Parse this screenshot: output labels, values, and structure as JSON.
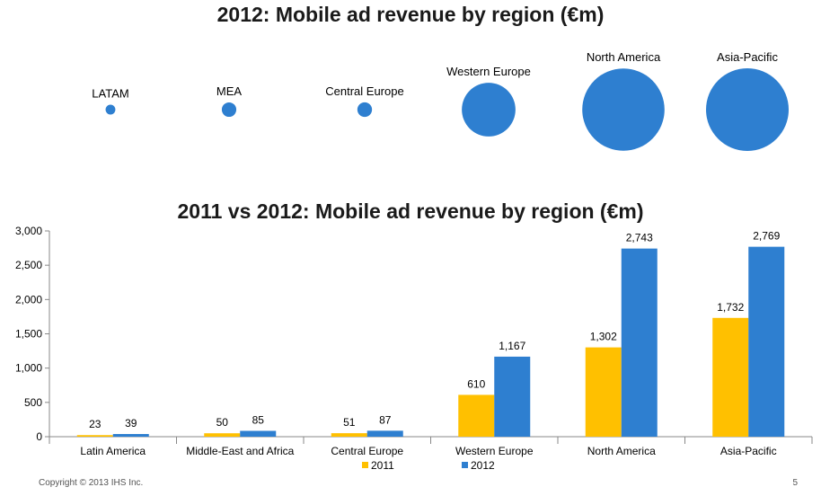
{
  "colors": {
    "y2011": "#FFC000",
    "y2012": "#2E7FD0",
    "axis": "#888888"
  },
  "footer": {
    "copyright": "Copyright © 2013 IHS Inc.",
    "page": "5"
  },
  "chart_data": [
    {
      "type": "bubble",
      "title": "2012: Mobile ad revenue by region (€m)",
      "categories": [
        "LATAM",
        "MEA",
        "Central Europe",
        "Western Europe",
        "North America",
        "Asia-Pacific"
      ],
      "values": [
        39,
        85,
        87,
        1167,
        2743,
        2769
      ]
    },
    {
      "type": "bar",
      "title": "2011 vs 2012: Mobile ad revenue by region (€m)",
      "categories": [
        "Latin America",
        "Middle-East and Africa",
        "Central Europe",
        "Western Europe",
        "North America",
        "Asia-Pacific"
      ],
      "series": [
        {
          "name": "2011",
          "values": [
            23,
            50,
            51,
            610,
            1302,
            1732
          ],
          "labels": [
            "23",
            "50",
            "51",
            "610",
            "1,302",
            "1,732"
          ]
        },
        {
          "name": "2012",
          "values": [
            39,
            85,
            87,
            1167,
            2743,
            2769
          ],
          "labels": [
            "39",
            "85",
            "87",
            "1,167",
            "2,743",
            "2,769"
          ]
        }
      ],
      "ylim": [
        0,
        3000
      ],
      "yticks": [
        "0",
        "500",
        "1,000",
        "1,500",
        "2,000",
        "2,500",
        "3,000"
      ],
      "legend": "bottom"
    }
  ]
}
